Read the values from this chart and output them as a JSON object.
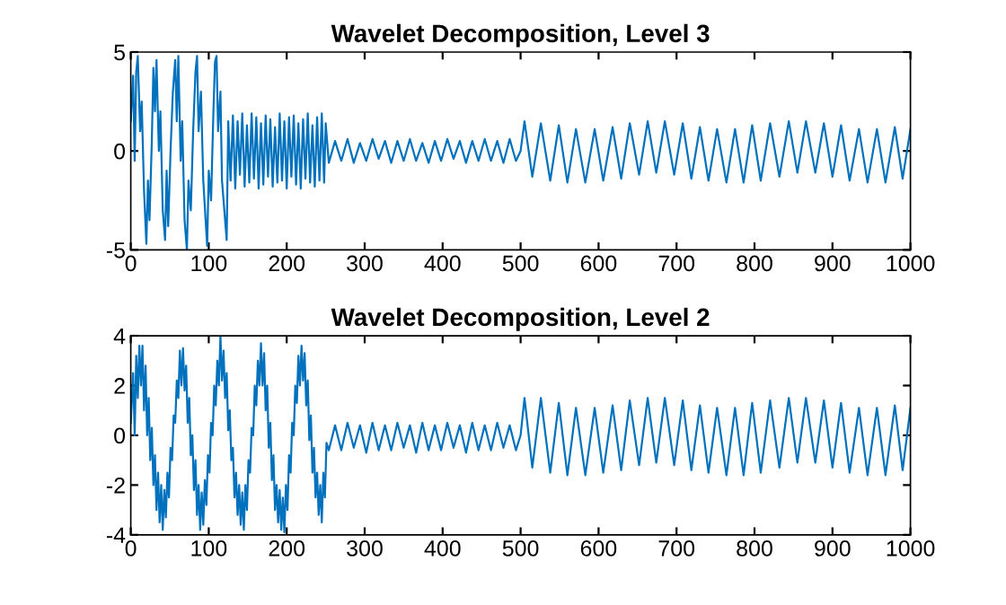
{
  "chart_data": [
    {
      "type": "line",
      "title": "Wavelet Decomposition, Level 3",
      "xlim": [
        0,
        1000
      ],
      "xticks": [
        0,
        100,
        200,
        300,
        400,
        500,
        600,
        700,
        800,
        900,
        1000
      ],
      "ylim": [
        -5,
        5
      ],
      "yticks": [
        -5,
        0,
        5
      ],
      "grid": false,
      "legend": false,
      "series": [
        {
          "color": "#0072bd",
          "x": [
            0,
            3,
            5,
            7,
            9,
            12,
            14,
            17,
            20,
            22,
            24,
            27,
            29,
            31,
            33,
            36,
            38,
            41,
            44,
            46,
            48,
            51,
            54,
            57,
            59,
            61,
            64,
            66,
            69,
            72,
            74,
            77,
            80,
            83,
            85,
            87,
            90,
            93,
            96,
            98,
            100,
            103,
            106,
            108,
            110,
            112,
            115,
            117,
            120,
            123,
            125,
            128,
            131,
            134,
            137,
            140,
            143,
            146,
            149,
            152,
            155,
            158,
            161,
            164,
            167,
            170,
            173,
            176,
            179,
            182,
            185,
            188,
            191,
            194,
            197,
            200,
            203,
            206,
            209,
            212,
            215,
            218,
            221,
            224,
            227,
            230,
            233,
            236,
            239,
            242,
            245,
            248,
            250,
            254,
            262,
            270,
            278,
            286,
            294,
            302,
            310,
            318,
            326,
            334,
            342,
            350,
            358,
            366,
            374,
            382,
            390,
            398,
            406,
            414,
            422,
            430,
            438,
            446,
            454,
            462,
            470,
            478,
            486,
            494,
            500,
            505,
            515,
            526,
            538,
            549,
            560,
            571,
            583,
            595,
            606,
            618,
            629,
            640,
            652,
            663,
            674,
            685,
            697,
            708,
            719,
            730,
            741,
            752,
            764,
            775,
            786,
            797,
            808,
            820,
            832,
            844,
            855,
            866,
            878,
            889,
            900,
            911,
            922,
            934,
            945,
            957,
            968,
            980,
            990,
            1000
          ],
          "values": [
            1.5,
            3.8,
            -0.5,
            4.0,
            4.8,
            1.0,
            2.5,
            -2.0,
            -4.7,
            -1.5,
            -3.5,
            0.5,
            4.2,
            2.0,
            4.6,
            0.0,
            2.0,
            -3.0,
            -4.5,
            -1.0,
            -3.8,
            0.0,
            3.0,
            4.6,
            1.5,
            4.8,
            -0.5,
            1.5,
            -3.5,
            -5.0,
            -1.5,
            -3.0,
            1.0,
            4.0,
            4.8,
            1.0,
            3.0,
            -1.5,
            -3.5,
            -4.8,
            -1.0,
            -2.5,
            2.0,
            4.5,
            4.8,
            1.0,
            3.0,
            -1.5,
            -3.0,
            -4.5,
            1.5,
            -1.5,
            1.8,
            -1.9,
            1.5,
            -1.2,
            1.9,
            -1.8,
            1.3,
            -1.6,
            1.9,
            -1.4,
            1.7,
            -1.9,
            1.4,
            -1.7,
            1.8,
            -1.3,
            1.6,
            -1.8,
            1.2,
            -1.6,
            1.9,
            -1.5,
            1.5,
            -1.9,
            1.7,
            -1.3,
            1.8,
            -1.7,
            1.4,
            -1.9,
            1.6,
            -1.4,
            1.9,
            -1.6,
            1.3,
            -1.8,
            1.7,
            -1.5,
            1.9,
            -1.6,
            1.4,
            -0.6,
            0.5,
            -0.5,
            0.6,
            -0.6,
            0.4,
            -0.5,
            0.6,
            -0.4,
            0.5,
            -0.6,
            0.5,
            -0.5,
            0.6,
            -0.5,
            0.4,
            -0.6,
            0.5,
            -0.5,
            0.6,
            -0.4,
            0.5,
            -0.6,
            0.5,
            -0.5,
            0.6,
            -0.5,
            0.5,
            -0.6,
            0.6,
            -0.5,
            0.0,
            1.5,
            -1.3,
            1.4,
            -1.5,
            1.3,
            -1.6,
            1.1,
            -1.6,
            1.1,
            -1.5,
            1.2,
            -1.4,
            1.4,
            -1.2,
            1.5,
            -1.1,
            1.5,
            -1.2,
            1.4,
            -1.4,
            1.2,
            -1.5,
            1.1,
            -1.6,
            1.1,
            -1.6,
            1.3,
            -1.5,
            1.4,
            -1.3,
            1.5,
            -1.1,
            1.5,
            -1.1,
            1.4,
            -1.3,
            1.3,
            -1.5,
            1.1,
            -1.6,
            1.1,
            -1.6,
            1.2,
            -1.4,
            1.1
          ]
        }
      ]
    },
    {
      "type": "line",
      "title": "Wavelet Decomposition, Level 2",
      "xlim": [
        0,
        1000
      ],
      "xticks": [
        0,
        100,
        200,
        300,
        400,
        500,
        600,
        700,
        800,
        900,
        1000
      ],
      "ylim": [
        -4,
        4
      ],
      "yticks": [
        -4,
        -2,
        0,
        2,
        4
      ],
      "grid": false,
      "legend": false,
      "series": [
        {
          "color": "#0072bd",
          "x": [
            0,
            3,
            5,
            7,
            9,
            11,
            13,
            15,
            17,
            19,
            21,
            23,
            25,
            27,
            29,
            31,
            33,
            35,
            37,
            39,
            41,
            43,
            45,
            47,
            49,
            51,
            53,
            55,
            57,
            59,
            61,
            63,
            65,
            67,
            69,
            71,
            73,
            75,
            77,
            79,
            81,
            83,
            85,
            87,
            89,
            91,
            93,
            95,
            97,
            99,
            101,
            103,
            105,
            107,
            109,
            111,
            113,
            115,
            117,
            119,
            121,
            123,
            125,
            127,
            129,
            131,
            133,
            135,
            137,
            139,
            141,
            143,
            145,
            147,
            149,
            151,
            153,
            155,
            157,
            159,
            161,
            163,
            165,
            167,
            169,
            171,
            173,
            175,
            177,
            179,
            181,
            183,
            185,
            187,
            189,
            191,
            193,
            195,
            197,
            199,
            201,
            203,
            205,
            207,
            209,
            211,
            213,
            215,
            217,
            219,
            221,
            223,
            225,
            227,
            229,
            231,
            233,
            235,
            237,
            239,
            241,
            243,
            245,
            247,
            249,
            251,
            254,
            262,
            270,
            278,
            286,
            294,
            302,
            310,
            318,
            326,
            334,
            342,
            350,
            358,
            366,
            374,
            382,
            390,
            398,
            406,
            414,
            422,
            430,
            438,
            446,
            454,
            462,
            470,
            478,
            486,
            494,
            500,
            505,
            515,
            526,
            538,
            549,
            560,
            571,
            583,
            595,
            606,
            618,
            629,
            640,
            652,
            663,
            674,
            685,
            697,
            708,
            719,
            730,
            741,
            752,
            764,
            775,
            786,
            797,
            808,
            820,
            832,
            844,
            855,
            866,
            878,
            889,
            900,
            911,
            922,
            934,
            945,
            957,
            968,
            980,
            990,
            1000
          ],
          "values": [
            0.5,
            2.5,
            0.0,
            3.2,
            1.5,
            3.6,
            2.0,
            3.6,
            1.0,
            2.8,
            0.0,
            1.5,
            -1.0,
            0.3,
            -2.0,
            -0.8,
            -3.0,
            -1.5,
            -3.5,
            -2.0,
            -3.8,
            -2.2,
            -3.3,
            -1.5,
            -2.5,
            -0.5,
            -1.0,
            0.8,
            0.5,
            2.2,
            1.5,
            3.4,
            2.0,
            3.5,
            1.8,
            2.8,
            0.5,
            1.5,
            -0.8,
            0.0,
            -2.2,
            -1.0,
            -3.2,
            -2.0,
            -3.8,
            -2.3,
            -3.6,
            -1.8,
            -2.8,
            -0.8,
            -1.5,
            0.5,
            0.0,
            2.0,
            1.2,
            3.0,
            2.0,
            4.0,
            2.2,
            3.4,
            1.5,
            2.5,
            0.2,
            1.0,
            -1.0,
            -0.5,
            -2.5,
            -1.5,
            -3.2,
            -2.0,
            -3.6,
            -2.3,
            -3.8,
            -2.0,
            -3.0,
            -1.0,
            -1.5,
            0.3,
            0.0,
            2.0,
            1.2,
            3.0,
            2.0,
            3.7,
            2.0,
            3.3,
            1.0,
            2.0,
            -0.5,
            0.5,
            -1.8,
            -0.8,
            -3.0,
            -2.0,
            -3.5,
            -2.2,
            -3.8,
            -2.5,
            -3.9,
            -2.0,
            -3.0,
            -0.8,
            -1.5,
            0.5,
            0.0,
            2.0,
            1.3,
            3.2,
            2.0,
            3.6,
            2.2,
            3.3,
            1.2,
            2.2,
            -0.2,
            0.8,
            -1.5,
            -0.5,
            -2.5,
            -1.5,
            -3.2,
            -2.0,
            -3.5,
            -1.5,
            -2.5,
            -0.3,
            -0.6,
            0.4,
            -0.6,
            0.5,
            -0.5,
            0.4,
            -0.7,
            0.5,
            -0.6,
            0.4,
            -0.6,
            0.5,
            -0.5,
            0.4,
            -0.7,
            0.5,
            -0.6,
            0.4,
            -0.6,
            0.5,
            -0.5,
            0.4,
            -0.7,
            0.5,
            -0.6,
            0.4,
            -0.6,
            0.5,
            -0.5,
            0.4,
            -0.6,
            0.0,
            1.5,
            -1.3,
            1.5,
            -1.5,
            1.3,
            -1.6,
            1.1,
            -1.6,
            1.1,
            -1.5,
            1.2,
            -1.4,
            1.4,
            -1.2,
            1.5,
            -1.1,
            1.5,
            -1.2,
            1.4,
            -1.4,
            1.2,
            -1.5,
            1.1,
            -1.6,
            1.1,
            -1.6,
            1.3,
            -1.5,
            1.4,
            -1.3,
            1.5,
            -1.1,
            1.5,
            -1.1,
            1.4,
            -1.3,
            1.3,
            -1.5,
            1.1,
            -1.6,
            1.1,
            -1.6,
            1.2,
            -1.4,
            1.1
          ]
        }
      ]
    }
  ]
}
